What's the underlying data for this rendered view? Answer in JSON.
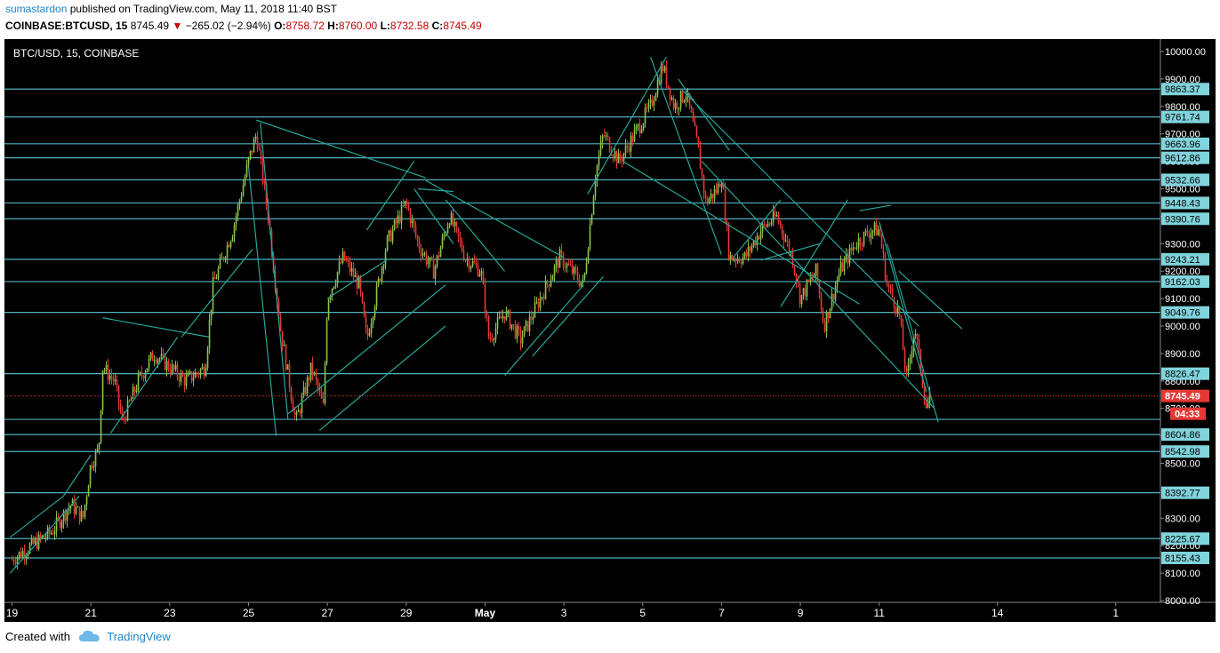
{
  "header": {
    "author": "sumastardon",
    "published": "published on TradingView.com, May 11, 2018 11:40 BST",
    "symbol": "COINBASE:BTCUSD, 15",
    "last": "8745.49",
    "change": "−265.02 (−2.94%)",
    "o_label": "O:",
    "o_value": "8758.72",
    "h_label": "H:",
    "h_value": "8760.00",
    "l_label": "L:",
    "l_value": "8732.58",
    "c_label": "C:",
    "c_value": "8745.49"
  },
  "footer": {
    "created_with": "Created with",
    "brand": "TradingView"
  },
  "colors": {
    "background": "#000000",
    "up": "#8bc34a",
    "down": "#e53935",
    "levels": "#4fb3bf",
    "trendlines": "#26a69a",
    "label_bg": "#80d4dc",
    "price_line": "#e53935"
  },
  "chart_data": {
    "type": "candlestick",
    "title": "BTC/USD, 15, COINBASE",
    "ylim": [
      8000,
      10000
    ],
    "y_ticks": [
      8000,
      8100,
      8200,
      8300,
      8400,
      8500,
      8600,
      8700,
      8800,
      8900,
      9000,
      9100,
      9200,
      9300,
      9400,
      9500,
      9600,
      9700,
      9800,
      9900,
      10000
    ],
    "y_tick_labels": [
      "8000.00",
      "8100.00",
      "8200.00",
      "8300.00",
      "8400.00",
      "8500.00",
      "8600.00",
      "8700.00",
      "8800.00",
      "8900.00",
      "9000.00",
      "9100.00",
      "9200.00",
      "9300.00",
      "9400.00",
      "9500.00",
      "9600.00",
      "9700.00",
      "9800.00",
      "9900.00",
      "10000.00"
    ],
    "x_ticks": [
      19,
      21,
      23,
      25,
      27,
      29,
      31,
      33,
      35,
      37,
      39,
      41,
      44,
      47
    ],
    "x_tick_labels": [
      "19",
      "21",
      "23",
      "25",
      "27",
      "29",
      "May",
      "3",
      "5",
      "7",
      "9",
      "11",
      "14",
      "1"
    ],
    "xlim": [
      18.92,
      48.0
    ],
    "horizontal_levels": [
      9863.37,
      9761.74,
      9663.96,
      9612.86,
      9532.66,
      9448.43,
      9390.76,
      9243.21,
      9162.03,
      9049.76,
      8826.47,
      8660.0,
      8604.86,
      8542.98,
      8392.77,
      8225.67,
      8155.43
    ],
    "level_labels": [
      "9863.37",
      "9761.74",
      "9663.96",
      "9612.86",
      "9532.66",
      "9448.43",
      "9390.76",
      "9243.21",
      "9162.03",
      "9049.76",
      "8826.47",
      "",
      "8604.86",
      "8542.98",
      "8392.77",
      "8225.67",
      "8155.43"
    ],
    "current_price": 8745.49,
    "current_price_label": "8745.49",
    "countdown": "04:33",
    "price_path": [
      [
        19.0,
        8150
      ],
      [
        19.5,
        8200
      ],
      [
        20.0,
        8250
      ],
      [
        20.5,
        8350
      ],
      [
        20.8,
        8300
      ],
      [
        21.0,
        8500
      ],
      [
        21.2,
        8550
      ],
      [
        21.3,
        8850
      ],
      [
        21.6,
        8800
      ],
      [
        21.8,
        8650
      ],
      [
        22.2,
        8800
      ],
      [
        22.6,
        8900
      ],
      [
        23.0,
        8850
      ],
      [
        23.4,
        8800
      ],
      [
        23.9,
        8850
      ],
      [
        24.1,
        9150
      ],
      [
        24.6,
        9350
      ],
      [
        25.0,
        9600
      ],
      [
        25.2,
        9700
      ],
      [
        25.5,
        9400
      ],
      [
        25.8,
        9000
      ],
      [
        26.2,
        8650
      ],
      [
        26.6,
        8850
      ],
      [
        26.9,
        8700
      ],
      [
        27.0,
        9100
      ],
      [
        27.4,
        9250
      ],
      [
        27.8,
        9150
      ],
      [
        28.0,
        8950
      ],
      [
        28.5,
        9300
      ],
      [
        29.0,
        9450
      ],
      [
        29.3,
        9300
      ],
      [
        29.7,
        9200
      ],
      [
        30.1,
        9400
      ],
      [
        30.5,
        9250
      ],
      [
        30.9,
        9200
      ],
      [
        31.1,
        8950
      ],
      [
        31.5,
        9050
      ],
      [
        31.9,
        8950
      ],
      [
        32.4,
        9100
      ],
      [
        32.9,
        9250
      ],
      [
        33.5,
        9150
      ],
      [
        33.8,
        9550
      ],
      [
        34.0,
        9700
      ],
      [
        34.4,
        9600
      ],
      [
        34.8,
        9700
      ],
      [
        35.2,
        9800
      ],
      [
        35.5,
        9950
      ],
      [
        35.8,
        9800
      ],
      [
        36.1,
        9850
      ],
      [
        36.4,
        9650
      ],
      [
        36.6,
        9450
      ],
      [
        36.9,
        9500
      ],
      [
        37.0,
        9550
      ],
      [
        37.2,
        9250
      ],
      [
        37.6,
        9250
      ],
      [
        38.0,
        9350
      ],
      [
        38.4,
        9400
      ],
      [
        38.8,
        9250
      ],
      [
        39.0,
        9100
      ],
      [
        39.4,
        9200
      ],
      [
        39.6,
        9000
      ],
      [
        40.0,
        9200
      ],
      [
        40.4,
        9300
      ],
      [
        40.8,
        9350
      ],
      [
        41.0,
        9350
      ],
      [
        41.2,
        9150
      ],
      [
        41.5,
        9050
      ],
      [
        41.7,
        8800
      ],
      [
        41.9,
        9000
      ],
      [
        42.2,
        8700
      ],
      [
        42.3,
        8745.49
      ]
    ],
    "trendlines": [
      [
        [
          18.95,
          8100
        ],
        [
          20.7,
          8380
        ]
      ],
      [
        [
          18.95,
          8230
        ],
        [
          20.3,
          8380
        ]
      ],
      [
        [
          20.3,
          8380
        ],
        [
          21.0,
          8530
        ]
      ],
      [
        [
          21.3,
          9030
        ],
        [
          24.0,
          8960
        ]
      ],
      [
        [
          21.5,
          8610
        ],
        [
          23.2,
          8960
        ]
      ],
      [
        [
          23.3,
          8960
        ],
        [
          25.1,
          9280
        ]
      ],
      [
        [
          25.2,
          9750
        ],
        [
          29.5,
          9540
        ]
      ],
      [
        [
          29.5,
          9530
        ],
        [
          33.0,
          9250
        ]
      ],
      [
        [
          25.0,
          9580
        ],
        [
          25.7,
          8600
        ]
      ],
      [
        [
          25.3,
          9740
        ],
        [
          26.0,
          8660
        ]
      ],
      [
        [
          26.0,
          8680
        ],
        [
          30.0,
          9150
        ]
      ],
      [
        [
          26.8,
          8620
        ],
        [
          30.0,
          9000
        ]
      ],
      [
        [
          27.0,
          9100
        ],
        [
          28.5,
          9240
        ]
      ],
      [
        [
          28.0,
          9350
        ],
        [
          29.2,
          9600
        ]
      ],
      [
        [
          29.2,
          9500
        ],
        [
          30.2,
          9300
        ]
      ],
      [
        [
          29.3,
          9500
        ],
        [
          30.2,
          9490
        ]
      ],
      [
        [
          30.0,
          9460
        ],
        [
          31.5,
          9200
        ]
      ],
      [
        [
          31.5,
          8820
        ],
        [
          33.5,
          9150
        ]
      ],
      [
        [
          32.2,
          8890
        ],
        [
          34.0,
          9180
        ]
      ],
      [
        [
          33.6,
          9480
        ],
        [
          35.6,
          9980
        ]
      ],
      [
        [
          35.2,
          9980
        ],
        [
          37.0,
          9260
        ]
      ],
      [
        [
          35.9,
          9900
        ],
        [
          37.2,
          9640
        ]
      ],
      [
        [
          34.5,
          9600
        ],
        [
          40.5,
          9080
        ]
      ],
      [
        [
          36.0,
          9860
        ],
        [
          42.0,
          9000
        ]
      ],
      [
        [
          36.5,
          9600
        ],
        [
          42.4,
          8700
        ]
      ],
      [
        [
          37.3,
          9250
        ],
        [
          38.5,
          9460
        ]
      ],
      [
        [
          38.5,
          9070
        ],
        [
          40.2,
          9460
        ]
      ],
      [
        [
          38.0,
          9240
        ],
        [
          39.5,
          9300
        ]
      ],
      [
        [
          40.5,
          9420
        ],
        [
          41.3,
          9440
        ]
      ],
      [
        [
          41.0,
          9380
        ],
        [
          42.2,
          8760
        ]
      ],
      [
        [
          41.2,
          9300
        ],
        [
          42.5,
          8650
        ]
      ],
      [
        [
          41.5,
          9200
        ],
        [
          43.1,
          8990
        ]
      ]
    ]
  }
}
